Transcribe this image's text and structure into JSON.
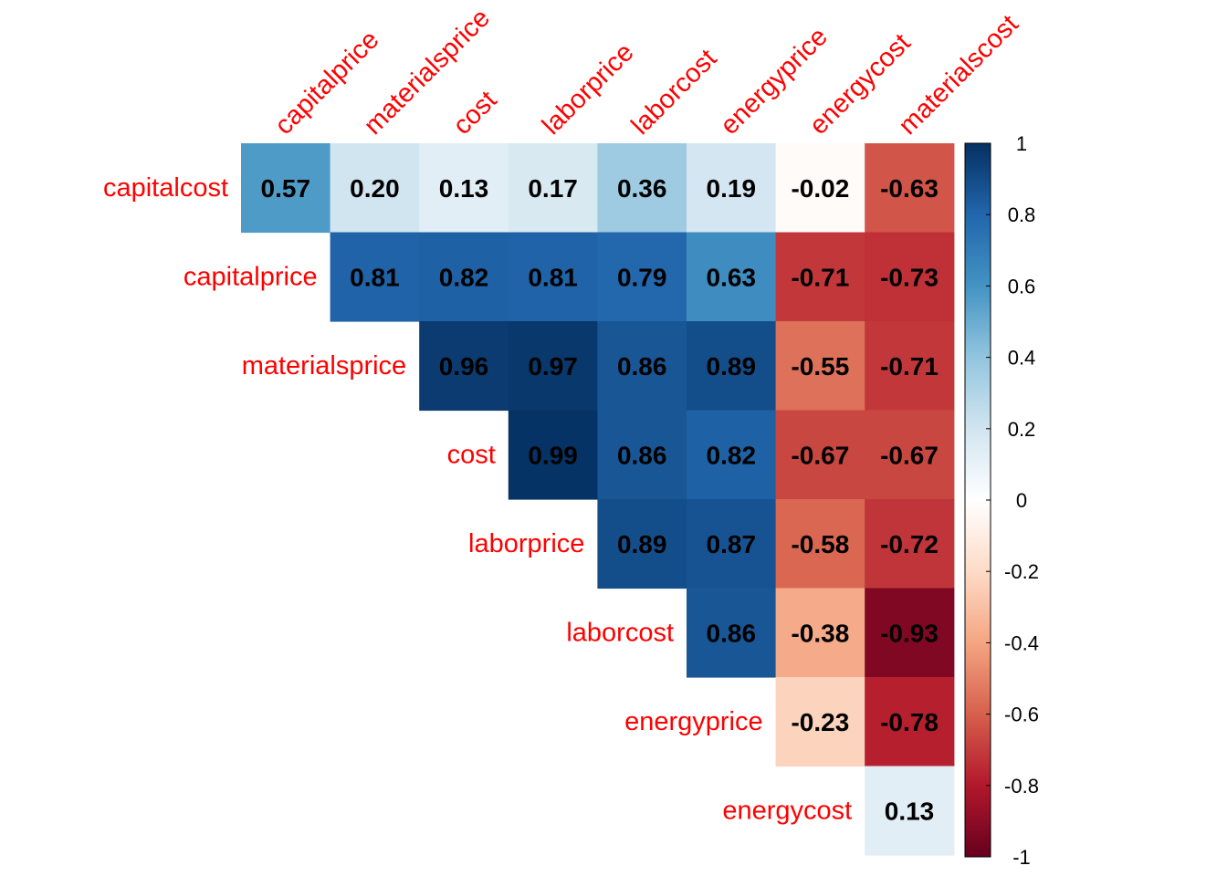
{
  "chart_data": {
    "type": "heatmap",
    "variant": "correlation-matrix-upper-triangle",
    "row_labels": [
      "capitalcost",
      "capitalprice",
      "materialsprice",
      "cost",
      "laborprice",
      "laborcost",
      "energyprice",
      "energycost"
    ],
    "col_labels": [
      "capitalprice",
      "materialsprice",
      "cost",
      "laborprice",
      "laborcost",
      "energyprice",
      "energycost",
      "materialscost"
    ],
    "values": [
      [
        0.57,
        0.2,
        0.13,
        0.17,
        0.36,
        0.19,
        -0.02,
        -0.63
      ],
      [
        null,
        0.81,
        0.82,
        0.81,
        0.79,
        0.63,
        -0.71,
        -0.73
      ],
      [
        null,
        null,
        0.96,
        0.97,
        0.86,
        0.89,
        -0.55,
        -0.71
      ],
      [
        null,
        null,
        null,
        0.99,
        0.86,
        0.82,
        -0.67,
        -0.67
      ],
      [
        null,
        null,
        null,
        null,
        0.89,
        0.87,
        -0.58,
        -0.72
      ],
      [
        null,
        null,
        null,
        null,
        null,
        0.86,
        -0.38,
        -0.93
      ],
      [
        null,
        null,
        null,
        null,
        null,
        null,
        -0.23,
        -0.78
      ],
      [
        null,
        null,
        null,
        null,
        null,
        null,
        null,
        0.13
      ]
    ],
    "colorbar": {
      "range": [
        -1,
        1
      ],
      "ticks": [
        1,
        0.8,
        0.6,
        0.4,
        0.2,
        0,
        -0.2,
        -0.4,
        -0.6,
        -0.8,
        -1
      ],
      "tick_labels": [
        "1",
        "0.8",
        "0.6",
        "0.4",
        "0.2",
        "0",
        "-0.2",
        "-0.4",
        "-0.6",
        "-0.8",
        "-1"
      ],
      "placement": "right"
    },
    "colors": {
      "negative_end": "#67001F",
      "positive_end": "#053061",
      "midpoint": "#FFFFFF",
      "label_color": "#FF0000"
    }
  }
}
